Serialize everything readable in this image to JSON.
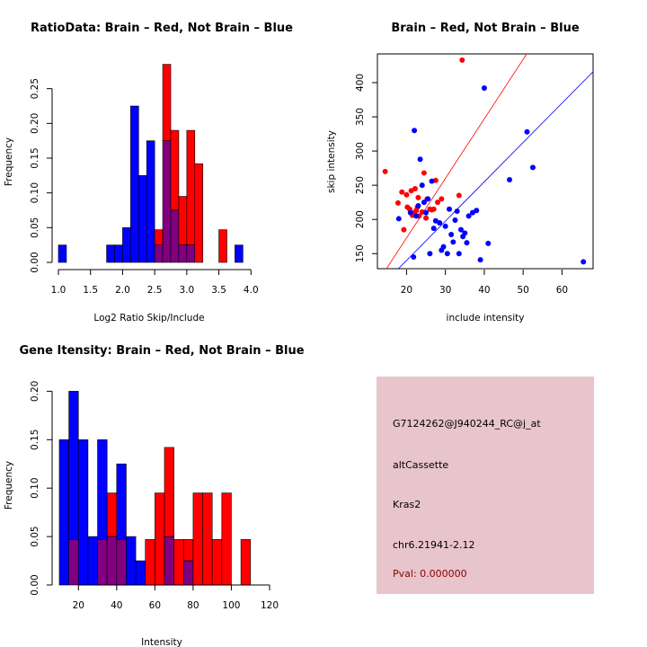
{
  "colors": {
    "brain": "#ff0000",
    "not_brain": "#0000ff",
    "overlap": "#800080",
    "info_bg": "#e8c4cc",
    "pval": "#8b0000"
  },
  "chart_data": [
    {
      "id": "ratio",
      "type": "bar",
      "title": "RatioData: Brain – Red, Not Brain – Blue",
      "xlabel": "Log2 Ratio Skip/Include",
      "ylabel": "Frequency",
      "xlim": [
        1.0,
        4.15
      ],
      "ylim": [
        0,
        0.3
      ],
      "xticks": [
        1.0,
        1.5,
        2.0,
        2.5,
        3.0,
        3.5,
        4.0
      ],
      "xtick_labels": [
        "1.0",
        "1.5",
        "2.0",
        "2.5",
        "3.0",
        "3.5",
        "4.0"
      ],
      "yticks": [
        0.0,
        0.05,
        0.1,
        0.15,
        0.2,
        0.25
      ],
      "ytick_labels": [
        "0.00",
        "0.05",
        "0.10",
        "0.15",
        "0.20",
        "0.25"
      ],
      "bin_width": 0.125,
      "series": [
        {
          "name": "Not Brain",
          "color": "blue",
          "bins": [
            [
              1.0625,
              0.025
            ],
            [
              1.8125,
              0.025
            ],
            [
              1.9375,
              0.025
            ],
            [
              2.0625,
              0.05
            ],
            [
              2.1875,
              0.225
            ],
            [
              2.3125,
              0.125
            ],
            [
              2.4375,
              0.175
            ],
            [
              2.5625,
              0.025
            ],
            [
              2.6875,
              0.175
            ],
            [
              2.8125,
              0.075
            ],
            [
              2.9375,
              0.025
            ],
            [
              3.0625,
              0.025
            ],
            [
              3.8125,
              0.025
            ]
          ]
        },
        {
          "name": "Brain",
          "color": "red",
          "bins": [
            [
              2.5625,
              0.047
            ],
            [
              2.6875,
              0.285
            ],
            [
              2.8125,
              0.19
            ],
            [
              2.9375,
              0.095
            ],
            [
              3.0625,
              0.19
            ],
            [
              3.1875,
              0.142
            ],
            [
              3.5625,
              0.047
            ]
          ]
        }
      ]
    },
    {
      "id": "scatter",
      "type": "scatter",
      "title": "Brain – Red, Not Brain – Blue",
      "xlabel": "include intensity",
      "ylabel": "skip intensity",
      "xlim": [
        12.5,
        68
      ],
      "ylim": [
        128,
        442
      ],
      "xticks": [
        20,
        30,
        40,
        50,
        60
      ],
      "xtick_labels": [
        "20",
        "30",
        "40",
        "50",
        "60"
      ],
      "yticks": [
        150,
        200,
        250,
        300,
        350,
        400
      ],
      "ytick_labels": [
        "150",
        "200",
        "250",
        "300",
        "350",
        "400"
      ],
      "lines": [
        {
          "name": "Brain fit",
          "color": "red",
          "intercept": -1,
          "slope": 8.7
        },
        {
          "name": "Not Brain fit",
          "color": "blue",
          "intercept": 25,
          "slope": 5.75
        }
      ],
      "series": [
        {
          "name": "Brain",
          "color": "red",
          "points": [
            [
              14.5,
              270
            ],
            [
              17.8,
              224
            ],
            [
              18.8,
              240
            ],
            [
              19.3,
              185
            ],
            [
              20.0,
              236
            ],
            [
              20.2,
              218
            ],
            [
              20.8,
              215
            ],
            [
              21.2,
              242
            ],
            [
              21.5,
              206
            ],
            [
              22.0,
              210
            ],
            [
              22.2,
              245
            ],
            [
              22.5,
              213
            ],
            [
              22.8,
              218
            ],
            [
              23.0,
              232
            ],
            [
              23.2,
              205
            ],
            [
              24.0,
              211
            ],
            [
              24.5,
              268
            ],
            [
              25.0,
              202
            ],
            [
              25.3,
              230
            ],
            [
              26.0,
              215
            ],
            [
              26.5,
              214
            ],
            [
              27.5,
              257
            ],
            [
              27.0,
              215
            ],
            [
              28.0,
              225
            ],
            [
              29.0,
              230
            ],
            [
              33.5,
              235
            ],
            [
              34.3,
              433
            ]
          ]
        },
        {
          "name": "Not Brain",
          "color": "blue",
          "points": [
            [
              18.0,
              201
            ],
            [
              21.0,
              210
            ],
            [
              21.8,
              145
            ],
            [
              22.0,
              330
            ],
            [
              22.5,
              205
            ],
            [
              23.0,
              220
            ],
            [
              23.5,
              288
            ],
            [
              24.0,
              250
            ],
            [
              24.5,
              225
            ],
            [
              25.0,
              210
            ],
            [
              25.5,
              230
            ],
            [
              26.0,
              150
            ],
            [
              26.5,
              256
            ],
            [
              27.0,
              187
            ],
            [
              27.5,
              198
            ],
            [
              28.5,
              195
            ],
            [
              29.0,
              155
            ],
            [
              29.5,
              160
            ],
            [
              30.0,
              190
            ],
            [
              30.5,
              150
            ],
            [
              31.0,
              215
            ],
            [
              31.5,
              178
            ],
            [
              32.0,
              167
            ],
            [
              32.5,
              199
            ],
            [
              33.0,
              212
            ],
            [
              33.5,
              150
            ],
            [
              34.0,
              185
            ],
            [
              34.5,
              175
            ],
            [
              35.0,
              180
            ],
            [
              35.5,
              166
            ],
            [
              36.0,
              205
            ],
            [
              37.0,
              210
            ],
            [
              38.0,
              213
            ],
            [
              39.0,
              141
            ],
            [
              40.0,
              392
            ],
            [
              41.0,
              165
            ],
            [
              46.5,
              258
            ],
            [
              51.0,
              328
            ],
            [
              52.5,
              276
            ],
            [
              65.5,
              138
            ]
          ]
        }
      ]
    },
    {
      "id": "intensity",
      "type": "bar",
      "title": "Gene Itensity: Brain – Red, Not Brain – Blue",
      "xlabel": "Intensity",
      "ylabel": "Frequency",
      "xlim": [
        10,
        120
      ],
      "ylim": [
        0,
        0.205
      ],
      "xticks": [
        20,
        40,
        60,
        80,
        100,
        120
      ],
      "xtick_labels": [
        "20",
        "40",
        "60",
        "80",
        "100",
        "120"
      ],
      "yticks": [
        0.0,
        0.05,
        0.1,
        0.15,
        0.2
      ],
      "ytick_labels": [
        "0.00",
        "0.05",
        "0.10",
        "0.15",
        "0.20"
      ],
      "bin_width": 5,
      "series": [
        {
          "name": "Not Brain",
          "color": "blue",
          "bins": [
            [
              12.5,
              0.15
            ],
            [
              17.5,
              0.2
            ],
            [
              22.5,
              0.15
            ],
            [
              27.5,
              0.05
            ],
            [
              32.5,
              0.15
            ],
            [
              37.5,
              0.05
            ],
            [
              42.5,
              0.125
            ],
            [
              47.5,
              0.05
            ],
            [
              52.5,
              0.025
            ],
            [
              57.5,
              0.0
            ],
            [
              62.5,
              0.0
            ],
            [
              67.5,
              0.05
            ],
            [
              72.5,
              0.0
            ],
            [
              77.5,
              0.025
            ]
          ]
        },
        {
          "name": "Brain",
          "color": "red",
          "bins": [
            [
              17.5,
              0.047
            ],
            [
              32.5,
              0.047
            ],
            [
              37.5,
              0.095
            ],
            [
              42.5,
              0.047
            ],
            [
              57.5,
              0.047
            ],
            [
              62.5,
              0.095
            ],
            [
              67.5,
              0.142
            ],
            [
              72.5,
              0.047
            ],
            [
              77.5,
              0.047
            ],
            [
              82.5,
              0.095
            ],
            [
              87.5,
              0.095
            ],
            [
              92.5,
              0.047
            ],
            [
              97.5,
              0.095
            ],
            [
              107.5,
              0.047
            ]
          ]
        }
      ]
    }
  ],
  "info": {
    "probe_id": "G7124262@J940244_RC@j_at",
    "event_type": "altCassette",
    "gene": "Kras2",
    "location": "chr6.21941-2.12",
    "pval": "Pval: 0.000000"
  }
}
